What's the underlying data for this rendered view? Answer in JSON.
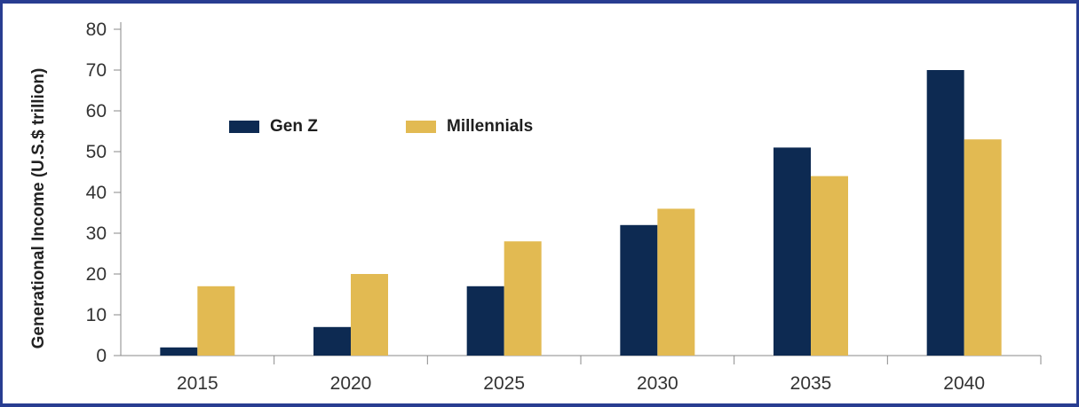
{
  "chart_data": {
    "type": "bar",
    "categories": [
      "2015",
      "2020",
      "2025",
      "2030",
      "2035",
      "2040"
    ],
    "series": [
      {
        "name": "Gen Z",
        "values": [
          2,
          7,
          17,
          32,
          51,
          70
        ],
        "color": "#0d2a52"
      },
      {
        "name": "Millennials",
        "values": [
          17,
          20,
          28,
          36,
          44,
          53
        ],
        "color": "#e2ba52"
      }
    ],
    "title": "",
    "xlabel": "",
    "ylabel": "Generational Income (U.S.$ trillion)",
    "ylim": [
      0,
      80
    ],
    "yticks": [
      0,
      10,
      20,
      30,
      40,
      50,
      60,
      70,
      80
    ],
    "grid": false,
    "legend_position": "top-left"
  },
  "frame_color": "#283d91"
}
